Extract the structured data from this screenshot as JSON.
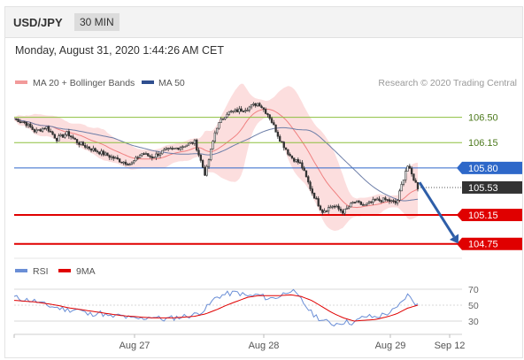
{
  "header": {
    "symbol": "USD/JPY",
    "timeframe": "30 MIN"
  },
  "datetime": "Monday, August 31, 2020 1:44:26 AM CET",
  "legend": [
    {
      "label": "MA 20 + Bollinger Bands",
      "color": "#f29a9a"
    },
    {
      "label": "MA 50",
      "color": "#2f4f8f"
    }
  ],
  "credit": "Research © 2020 Trading Central",
  "chart_data": [
    {
      "type": "candlestick",
      "ylim": [
        104.6,
        106.85
      ],
      "x_ticks": [
        "Aug 27",
        "Aug 28",
        "Aug 29",
        "Sep 12"
      ],
      "levels": [
        {
          "value": 106.5,
          "label": "106.50",
          "kind": "resistance",
          "color": "#8dbf3f"
        },
        {
          "value": 106.15,
          "label": "106.15",
          "kind": "resistance",
          "color": "#8dbf3f"
        },
        {
          "value": 105.8,
          "label": "105.80",
          "kind": "pivot",
          "color": "#2e68c9"
        },
        {
          "value": 105.53,
          "label": "105.53",
          "kind": "last-price",
          "color": "#333333"
        },
        {
          "value": 105.15,
          "label": "105.15",
          "kind": "support",
          "color": "#e00000"
        },
        {
          "value": 104.75,
          "label": "104.75",
          "kind": "support",
          "color": "#e00000"
        }
      ],
      "price_path": [
        106.48,
        106.43,
        106.3,
        106.37,
        106.2,
        106.28,
        106.15,
        106.08,
        106.02,
        105.96,
        105.9,
        105.85,
        106.0,
        105.95,
        106.03,
        106.06,
        106.11,
        106.16,
        105.7,
        106.35,
        106.56,
        106.59,
        106.63,
        106.7,
        106.52,
        106.2,
        105.96,
        105.85,
        105.48,
        105.2,
        105.28,
        105.19,
        105.33,
        105.28,
        105.35,
        105.36,
        105.31,
        105.84,
        105.53
      ],
      "projection": {
        "from": 105.6,
        "to": 104.75
      }
    },
    {
      "type": "line",
      "title": "RSI",
      "ylim": [
        20,
        80
      ],
      "y_ticks": [
        70,
        50,
        30
      ],
      "series": [
        {
          "name": "RSI",
          "color": "#6a8ed6",
          "values": [
            60,
            57,
            55,
            50,
            47,
            44,
            45,
            38,
            41,
            35,
            37,
            33,
            33,
            36,
            32,
            34,
            36,
            38,
            45,
            60,
            64,
            66,
            61,
            63,
            58,
            61,
            70,
            57,
            40,
            31,
            26,
            29,
            28,
            36,
            35,
            39,
            45,
            63,
            50
          ]
        },
        {
          "name": "9MA",
          "color": "#e00000",
          "values": [
            56,
            55,
            54,
            52,
            50,
            47,
            45,
            43,
            41,
            39,
            37,
            36,
            35,
            34,
            34,
            34,
            35,
            36,
            39,
            44,
            50,
            55,
            60,
            62,
            62,
            62,
            63,
            61,
            56,
            48,
            40,
            34,
            30,
            31,
            32,
            35,
            39,
            46,
            50
          ]
        }
      ]
    }
  ]
}
